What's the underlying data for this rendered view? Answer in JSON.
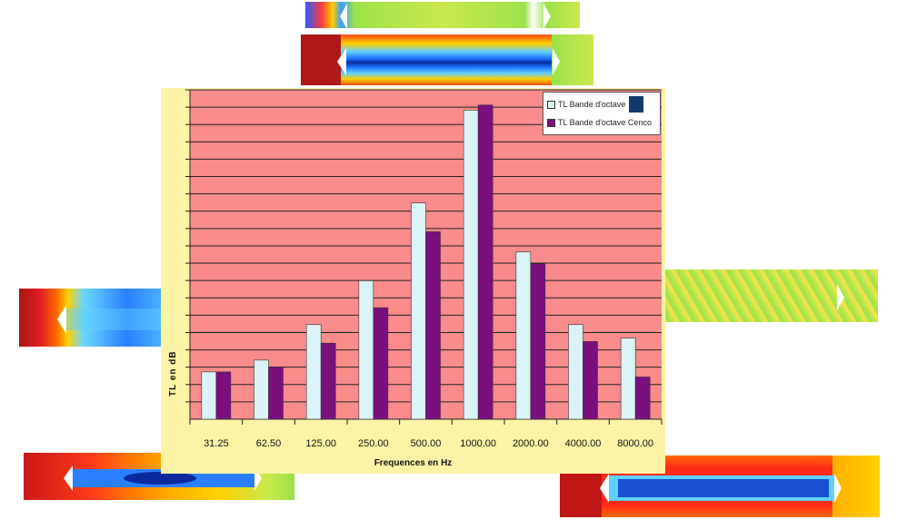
{
  "chart_data": {
    "type": "bar",
    "title": "",
    "xlabel": "Frequences en Hz",
    "ylabel": "TL en dB",
    "categories": [
      "31.25",
      "62.50",
      "125.00",
      "250.00",
      "500.00",
      "1000.00",
      "2000.00",
      "4000.00",
      "8000.00"
    ],
    "series": [
      {
        "name": "TL Bande d'octave",
        "color": "#daf3f6",
        "values": [
          2.8,
          3.5,
          5.6,
          8.2,
          12.8,
          18.3,
          9.9,
          5.6,
          4.8
        ]
      },
      {
        "name": "TL Bande d'octave Cenco",
        "color": "#7b0f7e",
        "values": [
          2.8,
          3.1,
          4.5,
          6.6,
          11.1,
          18.6,
          9.2,
          4.6,
          2.5
        ]
      }
    ],
    "ylim": [
      0,
      19.5
    ],
    "grid": true,
    "legend_position": "top-right",
    "plot_background": "#f98b8b",
    "frame_background": "#fdf3a6"
  },
  "colors": {
    "legend_square": "#143a6b"
  }
}
